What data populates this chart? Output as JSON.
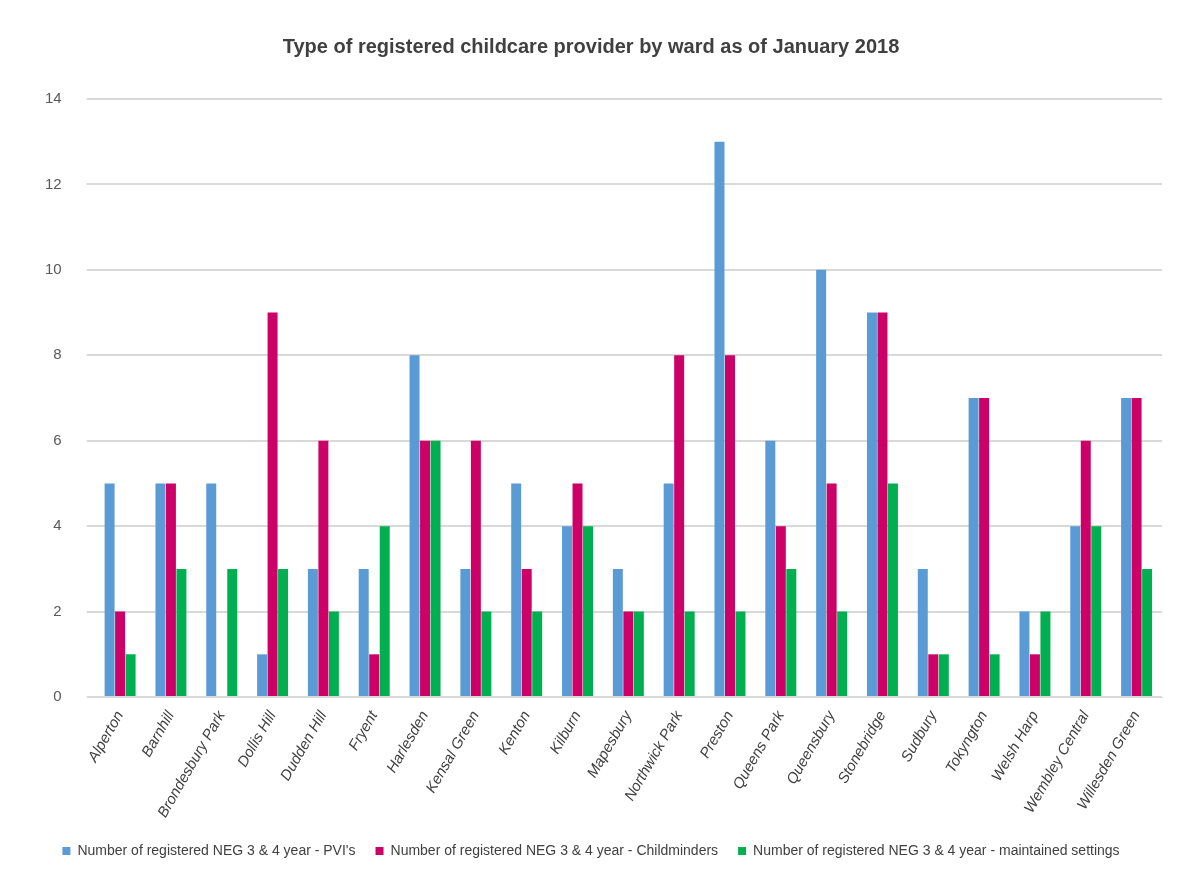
{
  "chart_data": {
    "type": "bar",
    "title": "Type of registered childcare provider by ward as of January 2018",
    "categories": [
      "Alperton",
      "Barnhill",
      "Brondesbury Park",
      "Dollis Hill",
      "Dudden Hill",
      "Fryent",
      "Harlesden",
      "Kensal Green",
      "Kenton",
      "Kilburn",
      "Mapesbury",
      "Northwick Park",
      "Preston",
      "Queens Park",
      "Queensbury",
      "Stonebridge",
      "Sudbury",
      "Tokyngton",
      "Welsh Harp",
      "Wembley Central",
      "Willesden Green"
    ],
    "series": [
      {
        "name": "Number of registered NEG 3 & 4 year - PVI's",
        "color": "#5b9bd5",
        "values": [
          5,
          5,
          5,
          1,
          3,
          3,
          8,
          3,
          5,
          4,
          3,
          5,
          13,
          6,
          10,
          9,
          3,
          7,
          2,
          4,
          7
        ]
      },
      {
        "name": "Number of registered NEG 3 & 4 year - Childminders",
        "color": "#cc0066",
        "values": [
          2,
          5,
          0,
          9,
          6,
          1,
          6,
          6,
          3,
          5,
          2,
          8,
          8,
          4,
          5,
          9,
          1,
          7,
          1,
          6,
          7
        ]
      },
      {
        "name": "Number of registered NEG 3 & 4 year - maintained settings",
        "color": "#00b050",
        "values": [
          1,
          3,
          3,
          3,
          2,
          4,
          6,
          2,
          2,
          4,
          2,
          2,
          2,
          3,
          2,
          5,
          1,
          1,
          2,
          4,
          3
        ]
      }
    ],
    "ylim": [
      0,
      14
    ],
    "yticks": [
      0,
      2,
      4,
      6,
      8,
      10,
      12,
      14
    ],
    "grid": "y",
    "legend": "bottom"
  }
}
